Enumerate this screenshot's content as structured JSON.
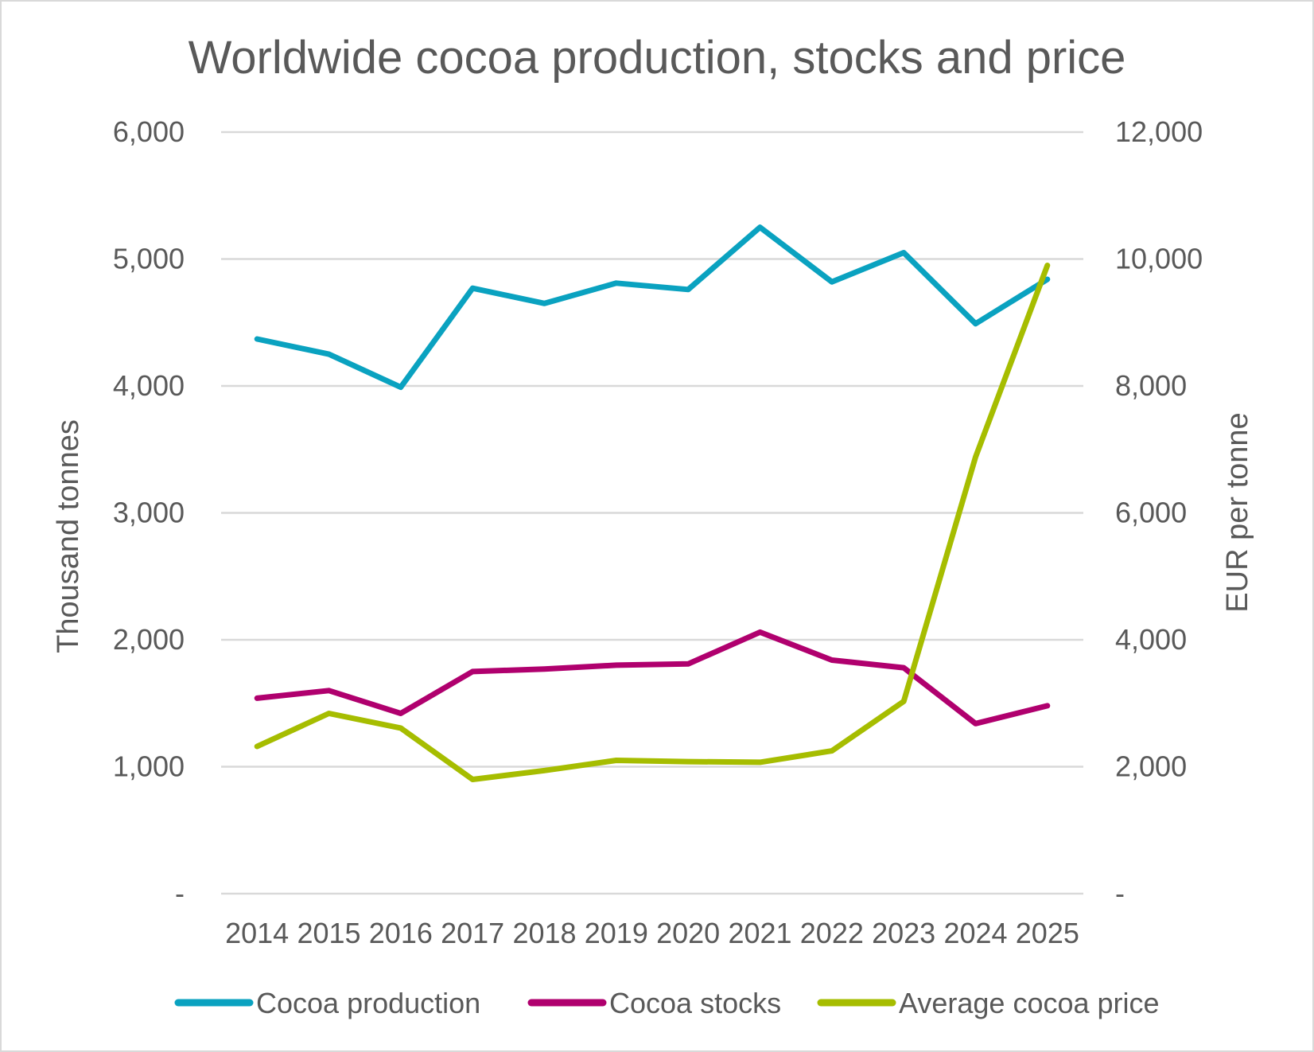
{
  "chart_data": {
    "type": "line",
    "title": "Worldwide cocoa production, stocks and price",
    "ylabel": "Thousand tonnes",
    "y2label": "EUR per tonne",
    "ylim": [
      0,
      6000
    ],
    "y2lim": [
      0,
      12000
    ],
    "yticks": [
      "-",
      "1,000",
      "2,000",
      "3,000",
      "4,000",
      "5,000",
      "6,000"
    ],
    "y2ticks": [
      "-",
      "2,000",
      "4,000",
      "6,000",
      "8,000",
      "10,000",
      "12,000"
    ],
    "categories": [
      "2014",
      "2015",
      "2016",
      "2017",
      "2018",
      "2019",
      "2020",
      "2021",
      "2022",
      "2023",
      "2024",
      "2025"
    ],
    "grid": true,
    "legend_position": "bottom",
    "series": [
      {
        "name": "Cocoa production",
        "axis": "left",
        "color": "#0aa2c0",
        "values": [
          4370,
          4250,
          3990,
          4770,
          4650,
          4810,
          4760,
          5250,
          4820,
          5050,
          4490,
          4840
        ]
      },
      {
        "name": "Cocoa stocks",
        "axis": "left",
        "color": "#b0006e",
        "values": [
          1540,
          1600,
          1420,
          1750,
          1770,
          1800,
          1810,
          2060,
          1840,
          1780,
          1340,
          1480
        ]
      },
      {
        "name": "Average cocoa price",
        "axis": "right",
        "color": "#a6bd00",
        "values": [
          2320,
          2840,
          2610,
          1800,
          1940,
          2100,
          2080,
          2070,
          2250,
          3030,
          6880,
          9900
        ]
      }
    ]
  }
}
